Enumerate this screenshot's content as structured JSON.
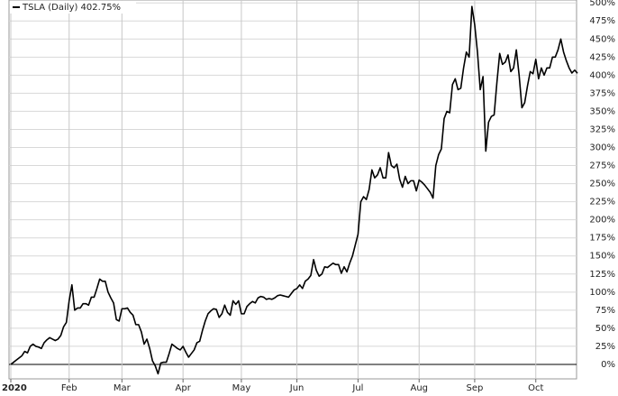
{
  "chart_data": {
    "type": "line",
    "series": [
      {
        "name": "TSLA (Daily) 402.75%",
        "color": "#000000",
        "values": [
          0,
          3,
          6,
          9,
          12,
          18,
          16,
          25,
          28,
          25,
          24,
          22,
          30,
          34,
          37,
          35,
          33,
          35,
          40,
          52,
          58,
          88,
          110,
          75,
          78,
          78,
          84,
          84,
          82,
          93,
          93,
          105,
          118,
          115,
          115,
          100,
          92,
          85,
          62,
          60,
          77,
          77,
          78,
          72,
          68,
          55,
          55,
          45,
          28,
          35,
          22,
          5,
          -2,
          -13,
          2,
          3,
          3,
          15,
          28,
          25,
          22,
          20,
          25,
          17,
          10,
          15,
          20,
          30,
          32,
          47,
          60,
          70,
          74,
          77,
          76,
          65,
          70,
          82,
          72,
          68,
          88,
          83,
          88,
          70,
          70,
          80,
          84,
          87,
          85,
          92,
          94,
          93,
          90,
          91,
          90,
          92,
          95,
          96,
          95,
          94,
          93,
          98,
          103,
          105,
          110,
          105,
          115,
          118,
          123,
          145,
          130,
          122,
          125,
          135,
          134,
          137,
          140,
          138,
          138,
          126,
          135,
          128,
          140,
          150,
          165,
          180,
          225,
          232,
          228,
          242,
          269,
          258,
          262,
          272,
          258,
          258,
          293,
          275,
          272,
          277,
          256,
          245,
          260,
          250,
          254,
          254,
          240,
          255,
          252,
          248,
          243,
          238,
          230,
          275,
          290,
          298,
          340,
          350,
          348,
          387,
          395,
          380,
          382,
          410,
          432,
          425,
          495,
          470,
          432,
          380,
          398,
          295,
          335,
          343,
          345,
          390,
          430,
          415,
          418,
          428,
          405,
          410,
          435,
          400,
          355,
          362,
          385,
          405,
          402,
          422,
          395,
          410,
          400,
          410,
          410,
          425,
          425,
          435,
          450,
          432,
          420,
          410,
          403,
          407,
          402.75
        ]
      }
    ],
    "xlim": [
      0,
      204
    ],
    "xticks": [
      {
        "value": 0,
        "label": "2020"
      },
      {
        "value": 21,
        "label": "Feb"
      },
      {
        "value": 40,
        "label": "Mar"
      },
      {
        "value": 62,
        "label": "Apr"
      },
      {
        "value": 83,
        "label": "May"
      },
      {
        "value": 103,
        "label": "Jun"
      },
      {
        "value": 125,
        "label": "Jul"
      },
      {
        "value": 147,
        "label": "Aug"
      },
      {
        "value": 167,
        "label": "Sep"
      },
      {
        "value": 189,
        "label": "Oct"
      }
    ],
    "ylim": [
      -20,
      504
    ],
    "yticks": [
      {
        "value": 0,
        "label": "0%"
      },
      {
        "value": 25,
        "label": "25%"
      },
      {
        "value": 50,
        "label": "50%"
      },
      {
        "value": 75,
        "label": "75%"
      },
      {
        "value": 100,
        "label": "100%"
      },
      {
        "value": 125,
        "label": "125%"
      },
      {
        "value": 150,
        "label": "150%"
      },
      {
        "value": 175,
        "label": "175%"
      },
      {
        "value": 200,
        "label": "200%"
      },
      {
        "value": 225,
        "label": "225%"
      },
      {
        "value": 250,
        "label": "250%"
      },
      {
        "value": 275,
        "label": "275%"
      },
      {
        "value": 300,
        "label": "300%"
      },
      {
        "value": 325,
        "label": "325%"
      },
      {
        "value": 350,
        "label": "350%"
      },
      {
        "value": 375,
        "label": "375%"
      },
      {
        "value": 400,
        "label": "400%"
      },
      {
        "value": 425,
        "label": "425%"
      },
      {
        "value": 450,
        "label": "450%"
      },
      {
        "value": 475,
        "label": "475%"
      },
      {
        "value": 500,
        "label": "500%"
      }
    ],
    "grid": true
  }
}
